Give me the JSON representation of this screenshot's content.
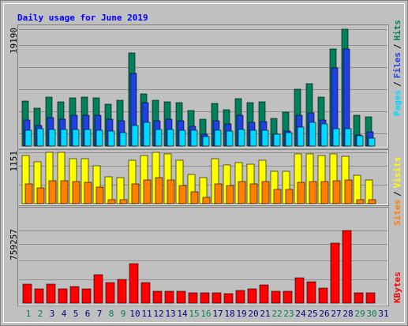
{
  "chart_data": {
    "type": "bar",
    "title": "Daily usage for June 2019",
    "categories": [
      "1",
      "2",
      "3",
      "4",
      "5",
      "6",
      "7",
      "8",
      "9",
      "10",
      "11",
      "12",
      "13",
      "14",
      "15",
      "16",
      "17",
      "18",
      "19",
      "20",
      "21",
      "22",
      "23",
      "24",
      "25",
      "26",
      "27",
      "28",
      "29",
      "30",
      "31"
    ],
    "category_colors": [
      "#00805c",
      "#00805c",
      "#000080",
      "#000080",
      "#000080",
      "#000080",
      "#000080",
      "#00805c",
      "#00805c",
      "#000080",
      "#000080",
      "#000080",
      "#000080",
      "#000080",
      "#00805c",
      "#00805c",
      "#000080",
      "#000080",
      "#000080",
      "#000080",
      "#000080",
      "#00805c",
      "#00805c",
      "#000080",
      "#000080",
      "#000080",
      "#000080",
      "#000080",
      "#00805c",
      "#00805c",
      "#000080"
    ],
    "legend_separator": "/",
    "panels": [
      {
        "ylim": [
          0,
          19190
        ],
        "yticks": [
          19190
        ],
        "series": [
          {
            "name": "Hits",
            "color": "#00805c",
            "values": [
              7391,
              6224,
              8039,
              7261,
              7909,
              8039,
              7909,
              6872,
              7520,
              15300,
              8558,
              7520,
              7261,
              7131,
              5835,
              4408,
              7002,
              5964,
              7780,
              7131,
              7261,
              4538,
              5575,
              9336,
              10243,
              8039,
              15948,
              19190,
              5057,
              4797,
              0
            ]
          },
          {
            "name": "Files",
            "color": "#2040e0",
            "values": [
              4279,
              3371,
              4668,
              4408,
              5057,
              5057,
              5057,
              4408,
              4149,
              11929,
              7131,
              4149,
              4408,
              4149,
              3242,
              1945,
              4149,
              3630,
              5057,
              3890,
              4020,
              1945,
              2464,
              5057,
              5446,
              4279,
              12836,
              15948,
              1815,
              2334,
              0
            ]
          },
          {
            "name": "Pages",
            "color": "#00d8ff",
            "values": [
              2593,
              2853,
              2723,
              2723,
              2723,
              2723,
              2593,
              2464,
              2204,
              3371,
              3890,
              2723,
              2723,
              2593,
              2593,
              1556,
              2593,
              2464,
              2723,
              2593,
              2593,
              1945,
              2204,
              3112,
              3890,
              3630,
              2853,
              2853,
              1686,
              1297,
              0
            ]
          }
        ]
      },
      {
        "ylim": [
          0,
          1151
        ],
        "yticks": [
          1151
        ],
        "series": [
          {
            "name": "Visits",
            "color": "#ffff00",
            "values": [
              1080,
              939,
              1151,
              1151,
              1009,
              1009,
              850,
              602,
              584,
              974,
              1080,
              1151,
              1116,
              974,
              655,
              584,
              1009,
              868,
              921,
              885,
              974,
              726,
              726,
              1116,
              1116,
              1080,
              1116,
              1062,
              637,
              531,
              0
            ]
          },
          {
            "name": "Sites",
            "color": "#ff8000",
            "values": [
              443,
              354,
              514,
              514,
              496,
              478,
              372,
              89,
              89,
              443,
              531,
              584,
              531,
              407,
              266,
              142,
              443,
              407,
              496,
              443,
              496,
              319,
              319,
              478,
              496,
              496,
              514,
              531,
              89,
              89,
              0
            ]
          }
        ]
      },
      {
        "ylim": [
          0,
          759257
        ],
        "yticks": [
          759257
        ],
        "series": [
          {
            "name": "KBytes",
            "color": "#ff0000",
            "values": [
              198072,
              148554,
              198072,
              148554,
              173313,
              148554,
              297108,
              214578,
              247590,
              412650,
              214578,
              123795,
              123795,
              123795,
              107289,
              107289,
              107289,
              99036,
              132048,
              148554,
              189819,
              123795,
              123795,
              264096,
              222831,
              156807,
              627228,
              759257,
              107289,
              107289,
              0
            ]
          }
        ]
      }
    ]
  }
}
